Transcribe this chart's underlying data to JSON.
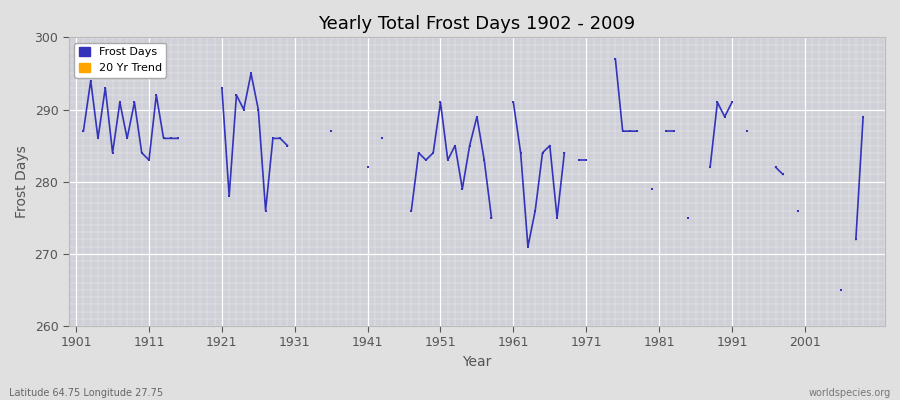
{
  "title": "Yearly Total Frost Days 1902 - 2009",
  "xlabel": "Year",
  "ylabel": "Frost Days",
  "subtitle_left": "Latitude 64.75 Longitude 27.75",
  "subtitle_right": "worldspecies.org",
  "ylim": [
    260,
    300
  ],
  "xlim": [
    1900,
    2012
  ],
  "yticks": [
    260,
    270,
    280,
    290,
    300
  ],
  "xticks": [
    1901,
    1911,
    1921,
    1931,
    1941,
    1951,
    1961,
    1971,
    1981,
    1991,
    2001
  ],
  "line_color": "#3333bb",
  "background_color": "#e0e0e0",
  "plot_bg_color": "#d0d0d8",
  "segments": [
    {
      "years": [
        1902,
        1903,
        1904,
        1905,
        1906,
        1907,
        1908,
        1909,
        1910,
        1911,
        1912,
        1913,
        1914,
        1915
      ],
      "values": [
        287,
        294,
        286,
        293,
        284,
        291,
        286,
        291,
        284,
        283,
        292,
        286,
        286,
        286
      ]
    },
    {
      "years": [
        1921,
        1922,
        1923,
        1924,
        1925,
        1926,
        1927,
        1928,
        1929,
        1930
      ],
      "values": [
        293,
        278,
        292,
        290,
        295,
        290,
        276,
        286,
        286,
        285
      ]
    },
    {
      "years": [
        1936
      ],
      "values": [
        287
      ]
    },
    {
      "years": [
        1941
      ],
      "values": [
        282
      ]
    },
    {
      "years": [
        1943
      ],
      "values": [
        286
      ]
    },
    {
      "years": [
        1947,
        1948,
        1949,
        1950,
        1951,
        1952,
        1953,
        1954,
        1955,
        1956,
        1957,
        1958
      ],
      "values": [
        276,
        284,
        283,
        284,
        291,
        283,
        285,
        279,
        285,
        289,
        283,
        275
      ]
    },
    {
      "years": [
        1961,
        1962,
        1963,
        1964,
        1965,
        1966,
        1967,
        1968
      ],
      "values": [
        291,
        284,
        271,
        276,
        284,
        285,
        275,
        284
      ]
    },
    {
      "years": [
        1970,
        1971
      ],
      "values": [
        283,
        283
      ]
    },
    {
      "years": [
        1975,
        1976,
        1977,
        1978
      ],
      "values": [
        297,
        287,
        287,
        287
      ]
    },
    {
      "years": [
        1980
      ],
      "values": [
        279
      ]
    },
    {
      "years": [
        1982,
        1983
      ],
      "values": [
        287,
        287
      ]
    },
    {
      "years": [
        1985
      ],
      "values": [
        275
      ]
    },
    {
      "years": [
        1988,
        1989,
        1990,
        1991
      ],
      "values": [
        282,
        291,
        289,
        291
      ]
    },
    {
      "years": [
        1993
      ],
      "values": [
        287
      ]
    },
    {
      "years": [
        1997,
        1998
      ],
      "values": [
        282,
        281
      ]
    },
    {
      "years": [
        2000
      ],
      "values": [
        276
      ]
    },
    {
      "years": [
        2006
      ],
      "values": [
        265
      ]
    },
    {
      "years": [
        2008,
        2009
      ],
      "values": [
        272,
        289
      ]
    }
  ]
}
